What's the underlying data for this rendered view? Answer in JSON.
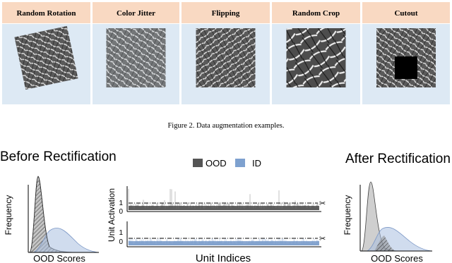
{
  "augmentations": [
    {
      "label": "Random Rotation"
    },
    {
      "label": "Color Jitter"
    },
    {
      "label": "Flipping"
    },
    {
      "label": "Random Crop"
    },
    {
      "label": "Cutout"
    }
  ],
  "caption": "Figure 2. Data augmentation examples.",
  "left_panel": {
    "title": "Before Rectification",
    "y_label": "Frequency",
    "x_label": "OOD Scores"
  },
  "legend": [
    "OOD",
    "ID"
  ],
  "middle_panel": {
    "y_label": "Unit Activation",
    "x_label": "Unit Indices",
    "top_ticks": [
      "1",
      "0"
    ],
    "bottom_ticks": [
      "1",
      "0"
    ]
  },
  "right_panel": {
    "title": "After Rectification",
    "y_label": "Frequency",
    "x_label": "OOD Scores"
  }
}
